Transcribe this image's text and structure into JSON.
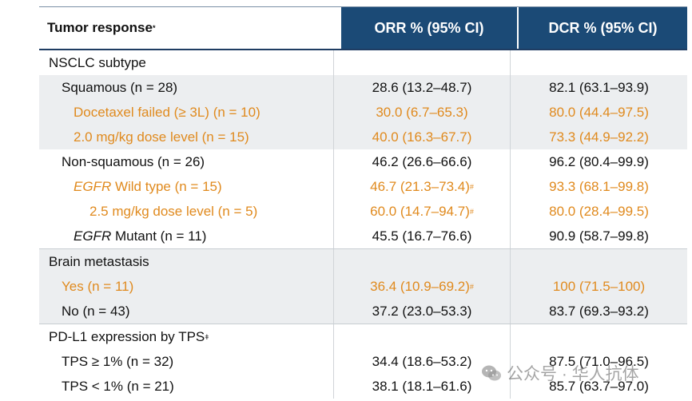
{
  "header": {
    "col0": "Tumor response",
    "col0_mark": "*",
    "col1": "ORR % (95% CI)",
    "col2": "DCR % (95% CI)"
  },
  "rows": [
    {
      "label": "NSCLC subtype",
      "orr": "",
      "dcr": ""
    },
    {
      "label": "Squamous (n = 28)",
      "orr": "28.6 (13.2–48.7)",
      "dcr": "82.1 (63.1–93.9)"
    },
    {
      "label": "Docetaxel failed (≥ 3L) (n = 10)",
      "orr": "30.0 (6.7–65.3)",
      "dcr": "80.0 (44.4–97.5)"
    },
    {
      "label": "2.0 mg/kg dose level (n = 15)",
      "orr": "40.0 (16.3–67.7)",
      "dcr": "73.3 (44.9–92.2)"
    },
    {
      "label": "Non-squamous (n = 26)",
      "orr": "46.2 (26.6–66.6)",
      "dcr": "96.2 (80.4–99.9)"
    },
    {
      "label_italic": "EGFR",
      "label": " Wild type (n = 15)",
      "orr": "46.7 (21.3–73.4)",
      "orr_mark": "#",
      "dcr": "93.3 (68.1–99.8)"
    },
    {
      "label": "2.5 mg/kg dose level (n = 5)",
      "orr": "60.0 (14.7–94.7)",
      "orr_mark": "#",
      "dcr": "80.0 (28.4–99.5)"
    },
    {
      "label_italic": "EGFR",
      "label": " Mutant (n = 11)",
      "orr": "45.5 (16.7–76.6)",
      "dcr": "90.9 (58.7–99.8)"
    },
    {
      "label": "Brain metastasis",
      "orr": "",
      "dcr": ""
    },
    {
      "label": "Yes (n = 11)",
      "orr": "36.4 (10.9–69.2)",
      "orr_mark": "#",
      "dcr": "100 (71.5–100)"
    },
    {
      "label": "No (n = 43)",
      "orr": "37.2 (23.0–53.3)",
      "dcr": "83.7 (69.3–93.2)"
    },
    {
      "label": "PD-L1 expression by TPS",
      "label_mark": "ǂ",
      "orr": "",
      "dcr": ""
    },
    {
      "label": "TPS ≥ 1% (n = 32)",
      "orr": "34.4 (18.6–53.2)",
      "dcr": "87.5 (71.0–96.5)"
    },
    {
      "label": "TPS < 1% (n = 21)",
      "orr": "38.1 (18.1–61.6)",
      "dcr": "85.7 (63.7–97.0)"
    }
  ],
  "watermark": {
    "text": "公众号 · 华人抗体",
    "icon": "wechat-icon"
  },
  "colors": {
    "header_bg": "#1b4a76",
    "highlight": "#e08a1e",
    "row_grey": "#eceef0"
  }
}
